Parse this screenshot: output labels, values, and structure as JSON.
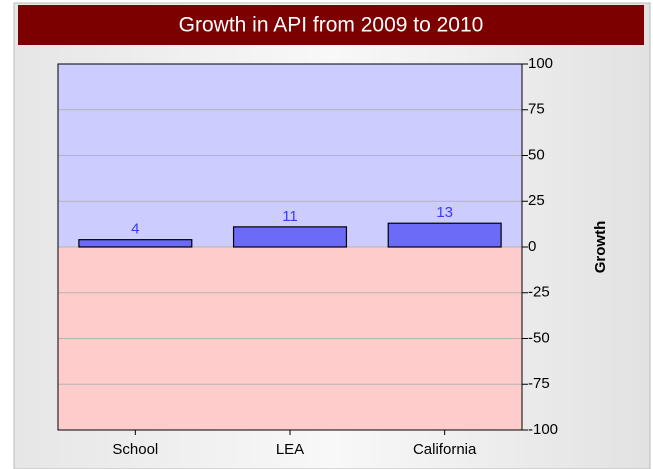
{
  "chart_data": {
    "type": "bar",
    "title": "Growth in API from 2009 to 2010",
    "categories": [
      "School",
      "LEA",
      "California"
    ],
    "values": [
      4,
      11,
      13
    ],
    "color": "#6b6bf7",
    "y_axis_label": "Growth",
    "ylim": [
      -100,
      100
    ],
    "yticks": [
      -100,
      -75,
      -50,
      -25,
      0,
      25,
      50,
      75,
      100
    ],
    "grid": true,
    "value_labels_shown": true
  }
}
